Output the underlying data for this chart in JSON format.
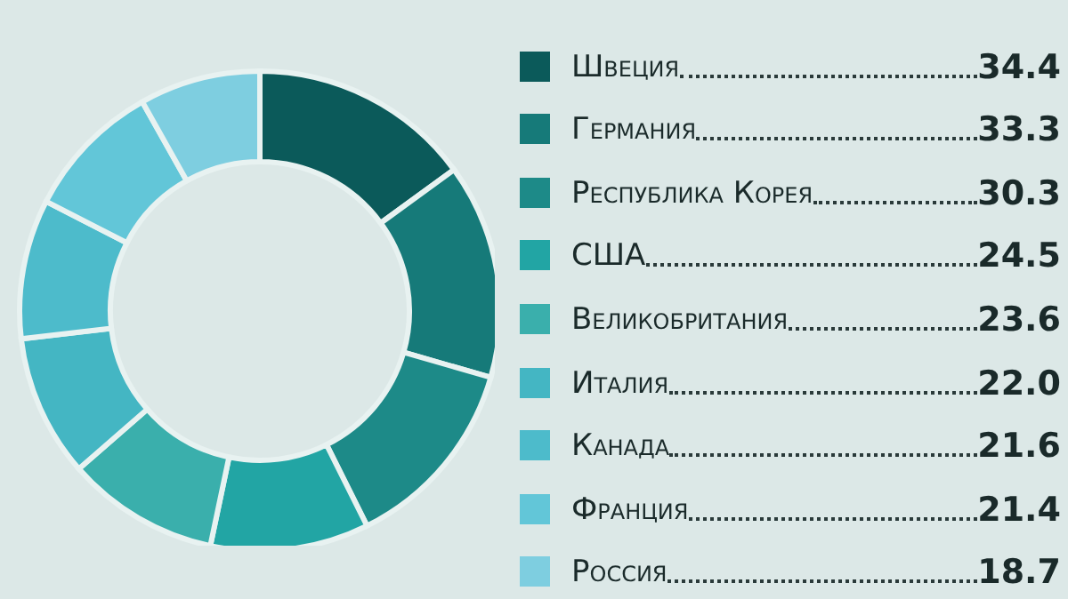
{
  "chart_data": {
    "type": "donut",
    "categories": [
      "Швеция",
      "Германия",
      "Республика Корея",
      "США",
      "Великобритания",
      "Италия",
      "Канада",
      "Франция",
      "Россия"
    ],
    "values": [
      34.4,
      33.3,
      30.3,
      24.5,
      23.6,
      22.0,
      21.6,
      21.4,
      18.7
    ],
    "colors": [
      "#0b5a5a",
      "#167a79",
      "#1d8a88",
      "#22a5a4",
      "#3aafac",
      "#44b6c3",
      "#4dbbcb",
      "#62c6d8",
      "#7ecee0"
    ],
    "value_labels": [
      "34.4",
      "33.3",
      "30.3",
      "24.5",
      "23.6",
      "22.0",
      "21.6",
      "21.4",
      "18.7"
    ],
    "legend": "right"
  }
}
